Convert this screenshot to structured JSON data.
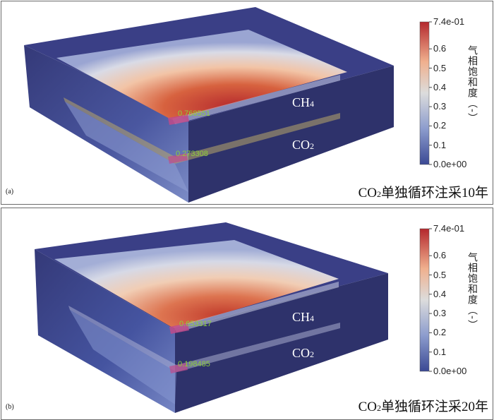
{
  "panels": [
    {
      "letter": "(a)",
      "caption_pre": "CO",
      "caption_sub": "2",
      "caption_post": "单独循环注采10年",
      "ch4_pre": "CH",
      "ch4_sub": "4",
      "co2_pre": "CO",
      "co2_sub": "2",
      "probe_ch4": "0.768551",
      "probe_co2": "0.273308"
    },
    {
      "letter": "(b)",
      "caption_pre": "CO",
      "caption_sub": "2",
      "caption_post": "单独循环注采20年",
      "ch4_pre": "CH",
      "ch4_sub": "4",
      "co2_pre": "CO",
      "co2_sub": "2",
      "probe_ch4": "0.653317",
      "probe_co2": "0.198485"
    }
  ],
  "colorbar": {
    "title": "气相饱和度（-）",
    "ticks": [
      "7.4e-01",
      "0.6",
      "0.5",
      "0.4",
      "0.3",
      "0.2",
      "0.1",
      "0.0e+00"
    ],
    "tick_values": [
      0.74,
      0.6,
      0.5,
      0.4,
      0.3,
      0.2,
      0.1,
      0.0
    ],
    "min": 0.0,
    "max": 0.74
  },
  "colors": {
    "box_top": "#3a3f86",
    "box_front": "#333876",
    "box_right": "#2e326b",
    "high": "#b4282d",
    "low": "#3b4994",
    "probe": "#8ccf3a"
  }
}
